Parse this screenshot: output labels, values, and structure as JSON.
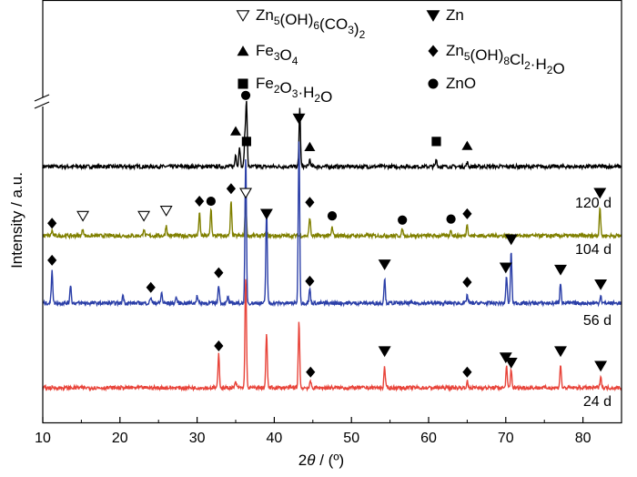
{
  "chart_data": {
    "type": "line",
    "xlabel": "2θ / (º)",
    "ylabel": "Intensity / a.u.",
    "xlim": [
      10,
      85
    ],
    "xticks": [
      10,
      20,
      30,
      40,
      50,
      60,
      70,
      80
    ],
    "axis_break": "y-axis break marks near top-left",
    "grid": false,
    "legend": [
      {
        "symbol": "triangle-down-open",
        "label": "Zn5(OH)6(CO3)2"
      },
      {
        "symbol": "triangle-up-filled",
        "label": "Fe3O4"
      },
      {
        "symbol": "square-filled",
        "label": "Fe2O3·H2O"
      },
      {
        "symbol": "triangle-down-filled",
        "label": "Zn"
      },
      {
        "symbol": "diamond-filled",
        "label": "Zn5(OH)8Cl2·H2O"
      },
      {
        "symbol": "circle-filled",
        "label": "ZnO"
      }
    ],
    "series": [
      {
        "name": "120 d",
        "color": "#000000",
        "peaks": [
          {
            "x": 35.0,
            "h": 0.6
          },
          {
            "x": 35.5,
            "h": 1.0
          },
          {
            "x": 36.2,
            "h": 1.4
          },
          {
            "x": 36.4,
            "h": 3.1
          },
          {
            "x": 43.3,
            "h": 2.8
          },
          {
            "x": 44.6,
            "h": 0.35
          },
          {
            "x": 61.0,
            "h": 0.35
          },
          {
            "x": 65.0,
            "h": 0.2
          }
        ]
      },
      {
        "name": "104 d",
        "color": "#808000",
        "peaks": [
          {
            "x": 11.2,
            "h": 0.25
          },
          {
            "x": 15.2,
            "h": 0.35
          },
          {
            "x": 23.1,
            "h": 0.35
          },
          {
            "x": 26.0,
            "h": 0.5
          },
          {
            "x": 30.3,
            "h": 1.1
          },
          {
            "x": 31.8,
            "h": 1.3
          },
          {
            "x": 34.4,
            "h": 1.6
          },
          {
            "x": 36.3,
            "h": 1.6
          },
          {
            "x": 39.0,
            "h": 0.2
          },
          {
            "x": 44.6,
            "h": 0.9
          },
          {
            "x": 47.5,
            "h": 0.4
          },
          {
            "x": 56.6,
            "h": 0.3
          },
          {
            "x": 62.9,
            "h": 0.3
          },
          {
            "x": 65.0,
            "h": 0.6
          },
          {
            "x": 82.2,
            "h": 1.4
          }
        ]
      },
      {
        "name": "56 d",
        "color": "#2b3fa8",
        "peaks": [
          {
            "x": 11.2,
            "h": 1.6
          },
          {
            "x": 13.6,
            "h": 0.9
          },
          {
            "x": 20.4,
            "h": 0.4
          },
          {
            "x": 24.0,
            "h": 0.3
          },
          {
            "x": 25.4,
            "h": 0.5
          },
          {
            "x": 27.3,
            "h": 0.3
          },
          {
            "x": 30.0,
            "h": 0.4
          },
          {
            "x": 32.8,
            "h": 0.9
          },
          {
            "x": 34.0,
            "h": 0.3
          },
          {
            "x": 36.3,
            "h": 7.0
          },
          {
            "x": 39.0,
            "h": 4.5
          },
          {
            "x": 43.2,
            "h": 8.0
          },
          {
            "x": 44.6,
            "h": 0.7
          },
          {
            "x": 54.3,
            "h": 1.2
          },
          {
            "x": 65.0,
            "h": 0.4
          },
          {
            "x": 70.1,
            "h": 1.3
          },
          {
            "x": 70.7,
            "h": 2.5
          },
          {
            "x": 77.1,
            "h": 1.0
          },
          {
            "x": 82.3,
            "h": 0.4
          }
        ]
      },
      {
        "name": "24 d",
        "color": "#e8443a",
        "peaks": [
          {
            "x": 32.8,
            "h": 1.6
          },
          {
            "x": 35.0,
            "h": 0.3
          },
          {
            "x": 36.3,
            "h": 5.4
          },
          {
            "x": 39.0,
            "h": 2.6
          },
          {
            "x": 43.2,
            "h": 3.2
          },
          {
            "x": 44.7,
            "h": 0.3
          },
          {
            "x": 54.3,
            "h": 1.0
          },
          {
            "x": 65.0,
            "h": 0.3
          },
          {
            "x": 70.1,
            "h": 1.0
          },
          {
            "x": 70.7,
            "h": 0.9
          },
          {
            "x": 77.1,
            "h": 1.1
          },
          {
            "x": 82.3,
            "h": 0.6
          }
        ]
      }
    ],
    "markers": [
      {
        "series": "120 d",
        "symbol": "circle-filled",
        "x": 36.3,
        "h": 3.4
      },
      {
        "series": "120 d",
        "symbol": "triangle-up-filled",
        "x": 35.0,
        "h": 1.7
      },
      {
        "series": "120 d",
        "symbol": "square-filled",
        "x": 36.4,
        "h": 1.2
      },
      {
        "series": "120 d",
        "symbol": "triangle-down-filled",
        "x": 43.2,
        "h": 2.3
      },
      {
        "series": "120 d",
        "symbol": "triangle-up-filled",
        "x": 44.6,
        "h": 0.95
      },
      {
        "series": "120 d",
        "symbol": "square-filled",
        "x": 61.0,
        "h": 1.2
      },
      {
        "series": "120 d",
        "symbol": "triangle-up-filled",
        "x": 65.0,
        "h": 1.0
      },
      {
        "series": "104 d",
        "symbol": "diamond-filled",
        "x": 11.2,
        "h": 0.6
      },
      {
        "series": "104 d",
        "symbol": "triangle-down-open",
        "x": 15.2,
        "h": 0.95
      },
      {
        "series": "104 d",
        "symbol": "triangle-down-open",
        "x": 23.1,
        "h": 0.95
      },
      {
        "series": "104 d",
        "symbol": "triangle-down-open",
        "x": 26.0,
        "h": 1.2
      },
      {
        "series": "104 d",
        "symbol": "diamond-filled",
        "x": 30.3,
        "h": 1.65
      },
      {
        "series": "104 d",
        "symbol": "circle-filled",
        "x": 31.8,
        "h": 1.65
      },
      {
        "series": "104 d",
        "symbol": "diamond-filled",
        "x": 34.4,
        "h": 2.25
      },
      {
        "series": "104 d",
        "symbol": "triangle-down-open",
        "x": 36.3,
        "h": 2.05
      },
      {
        "series": "104 d",
        "symbol": "triangle-down-filled",
        "x": 39.0,
        "h": 1.05
      },
      {
        "series": "104 d",
        "symbol": "diamond-filled",
        "x": 44.6,
        "h": 1.6
      },
      {
        "series": "104 d",
        "symbol": "circle-filled",
        "x": 47.5,
        "h": 0.95
      },
      {
        "series": "104 d",
        "symbol": "circle-filled",
        "x": 56.6,
        "h": 0.75
      },
      {
        "series": "104 d",
        "symbol": "circle-filled",
        "x": 62.9,
        "h": 0.8
      },
      {
        "series": "104 d",
        "symbol": "diamond-filled",
        "x": 65.0,
        "h": 1.05
      },
      {
        "series": "104 d",
        "symbol": "triangle-down-filled",
        "x": 82.2,
        "h": 2.05
      },
      {
        "series": "56 d",
        "symbol": "diamond-filled",
        "x": 11.2,
        "h": 2.05
      },
      {
        "series": "56 d",
        "symbol": "diamond-filled",
        "x": 24.0,
        "h": 0.75
      },
      {
        "series": "56 d",
        "symbol": "diamond-filled",
        "x": 32.8,
        "h": 1.45
      },
      {
        "series": "56 d",
        "symbol": "diamond-filled",
        "x": 44.6,
        "h": 1.05
      },
      {
        "series": "56 d",
        "symbol": "triangle-down-filled",
        "x": 54.3,
        "h": 1.85
      },
      {
        "series": "56 d",
        "symbol": "diamond-filled",
        "x": 65.0,
        "h": 1.0
      },
      {
        "series": "56 d",
        "symbol": "triangle-down-filled",
        "x": 70.0,
        "h": 1.7
      },
      {
        "series": "56 d",
        "symbol": "triangle-down-filled",
        "x": 70.7,
        "h": 3.05
      },
      {
        "series": "56 d",
        "symbol": "triangle-down-filled",
        "x": 77.1,
        "h": 1.6
      },
      {
        "series": "56 d",
        "symbol": "triangle-down-filled",
        "x": 82.3,
        "h": 0.9
      },
      {
        "series": "24 d",
        "symbol": "diamond-filled",
        "x": 32.8,
        "h": 2.0
      },
      {
        "series": "24 d",
        "symbol": "diamond-filled",
        "x": 44.7,
        "h": 0.75
      },
      {
        "series": "24 d",
        "symbol": "triangle-down-filled",
        "x": 54.3,
        "h": 1.75
      },
      {
        "series": "24 d",
        "symbol": "diamond-filled",
        "x": 65.0,
        "h": 0.75
      },
      {
        "series": "24 d",
        "symbol": "triangle-down-filled",
        "x": 70.0,
        "h": 1.45
      },
      {
        "series": "24 d",
        "symbol": "triangle-down-filled",
        "x": 70.7,
        "h": 1.2
      },
      {
        "series": "24 d",
        "symbol": "triangle-down-filled",
        "x": 77.1,
        "h": 1.75
      },
      {
        "series": "24 d",
        "symbol": "triangle-down-filled",
        "x": 82.3,
        "h": 1.05
      }
    ]
  }
}
